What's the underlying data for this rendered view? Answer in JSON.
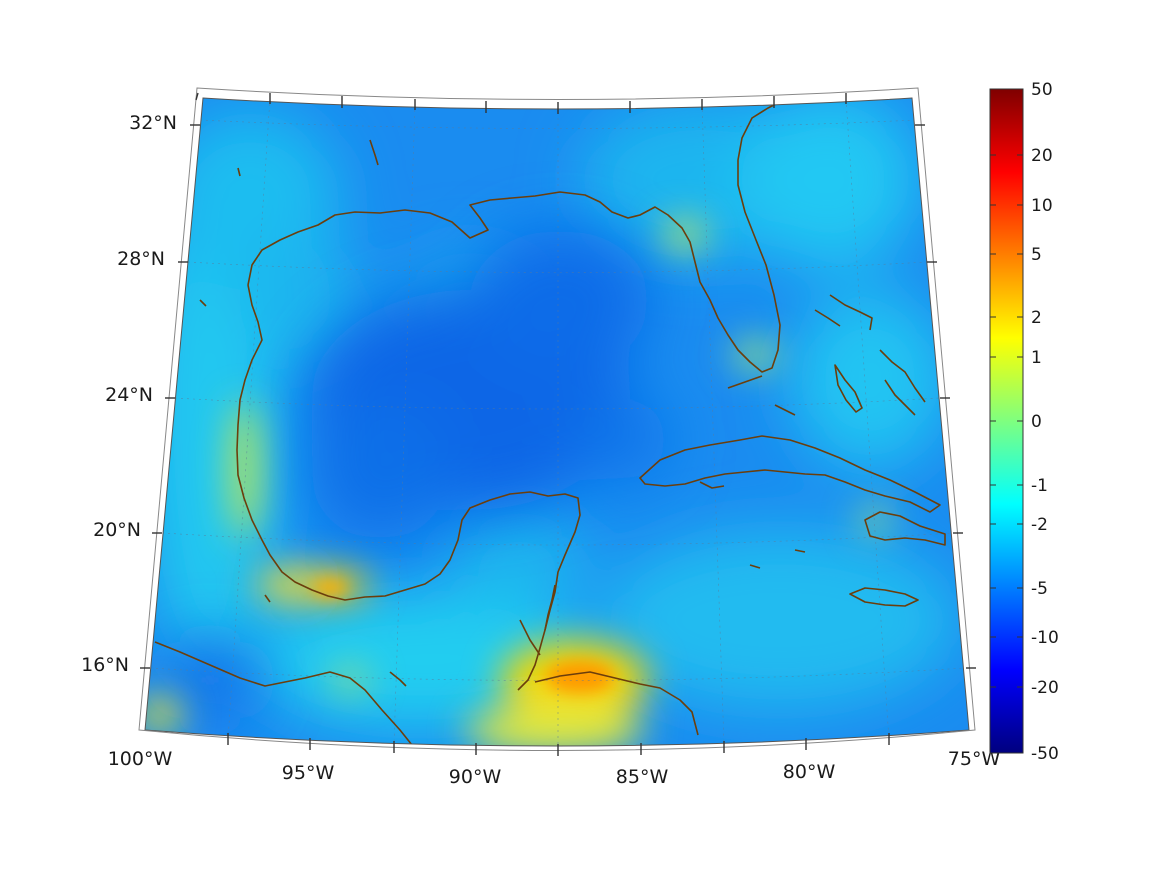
{
  "map": {
    "projection": "conic",
    "lon_range": [
      -100,
      -75
    ],
    "lat_range": [
      14,
      33
    ],
    "coastline_color": "#6b3e0c",
    "grid_style": "dotted"
  },
  "axes": {
    "lat_labels": [
      {
        "value": 32,
        "text": "32°N"
      },
      {
        "value": 28,
        "text": "28°N"
      },
      {
        "value": 24,
        "text": "24°N"
      },
      {
        "value": 20,
        "text": "20°N"
      },
      {
        "value": 16,
        "text": "16°N"
      }
    ],
    "lon_labels": [
      {
        "value": -100,
        "text": "100°W"
      },
      {
        "value": -95,
        "text": "95°W"
      },
      {
        "value": -90,
        "text": "90°W"
      },
      {
        "value": -85,
        "text": "85°W"
      },
      {
        "value": -80,
        "text": "80°W"
      },
      {
        "value": -75,
        "text": "75°W"
      }
    ]
  },
  "colorbar": {
    "colormap": "jet",
    "colors": [
      "#00007f",
      "#0000ff",
      "#007fff",
      "#00ffff",
      "#7fff7f",
      "#ffff00",
      "#ff7f00",
      "#ff0000",
      "#7f0000"
    ],
    "tick_labels": [
      "50",
      "20",
      "10",
      "5",
      "2",
      "1",
      "0",
      "-1",
      "-2",
      "-5",
      "-10",
      "-20",
      "-50"
    ]
  },
  "field": {
    "dominant_level": "-5",
    "highlights": [
      {
        "region": "Gulf of Honduras",
        "level": "5"
      },
      {
        "region": "Bay of Campeche coast",
        "level": "2"
      },
      {
        "region": "Western Gulf coast",
        "level": "1"
      },
      {
        "region": "Florida west coast",
        "level": "1"
      }
    ]
  }
}
